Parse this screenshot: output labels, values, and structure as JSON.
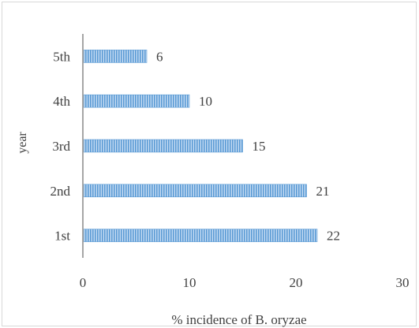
{
  "chart_data": {
    "type": "bar",
    "orientation": "horizontal",
    "categories": [
      "1st",
      "2nd",
      "3rd",
      "4th",
      "5th"
    ],
    "values": [
      22,
      21,
      15,
      10,
      6
    ],
    "title": "",
    "xlabel": "% incidence of B. oryzae",
    "ylabel": "year",
    "xlim": [
      0,
      30
    ],
    "xticks": [
      "0",
      "10",
      "20",
      "30"
    ],
    "grid": false,
    "legend": "none",
    "data_labels": true
  },
  "colors": {
    "bar_fill": "#c6dcf3",
    "bar_stripe": "#5b9bd5",
    "axis_line": "#a6a6a6",
    "text": "#404040",
    "border": "#d9d9d9"
  }
}
